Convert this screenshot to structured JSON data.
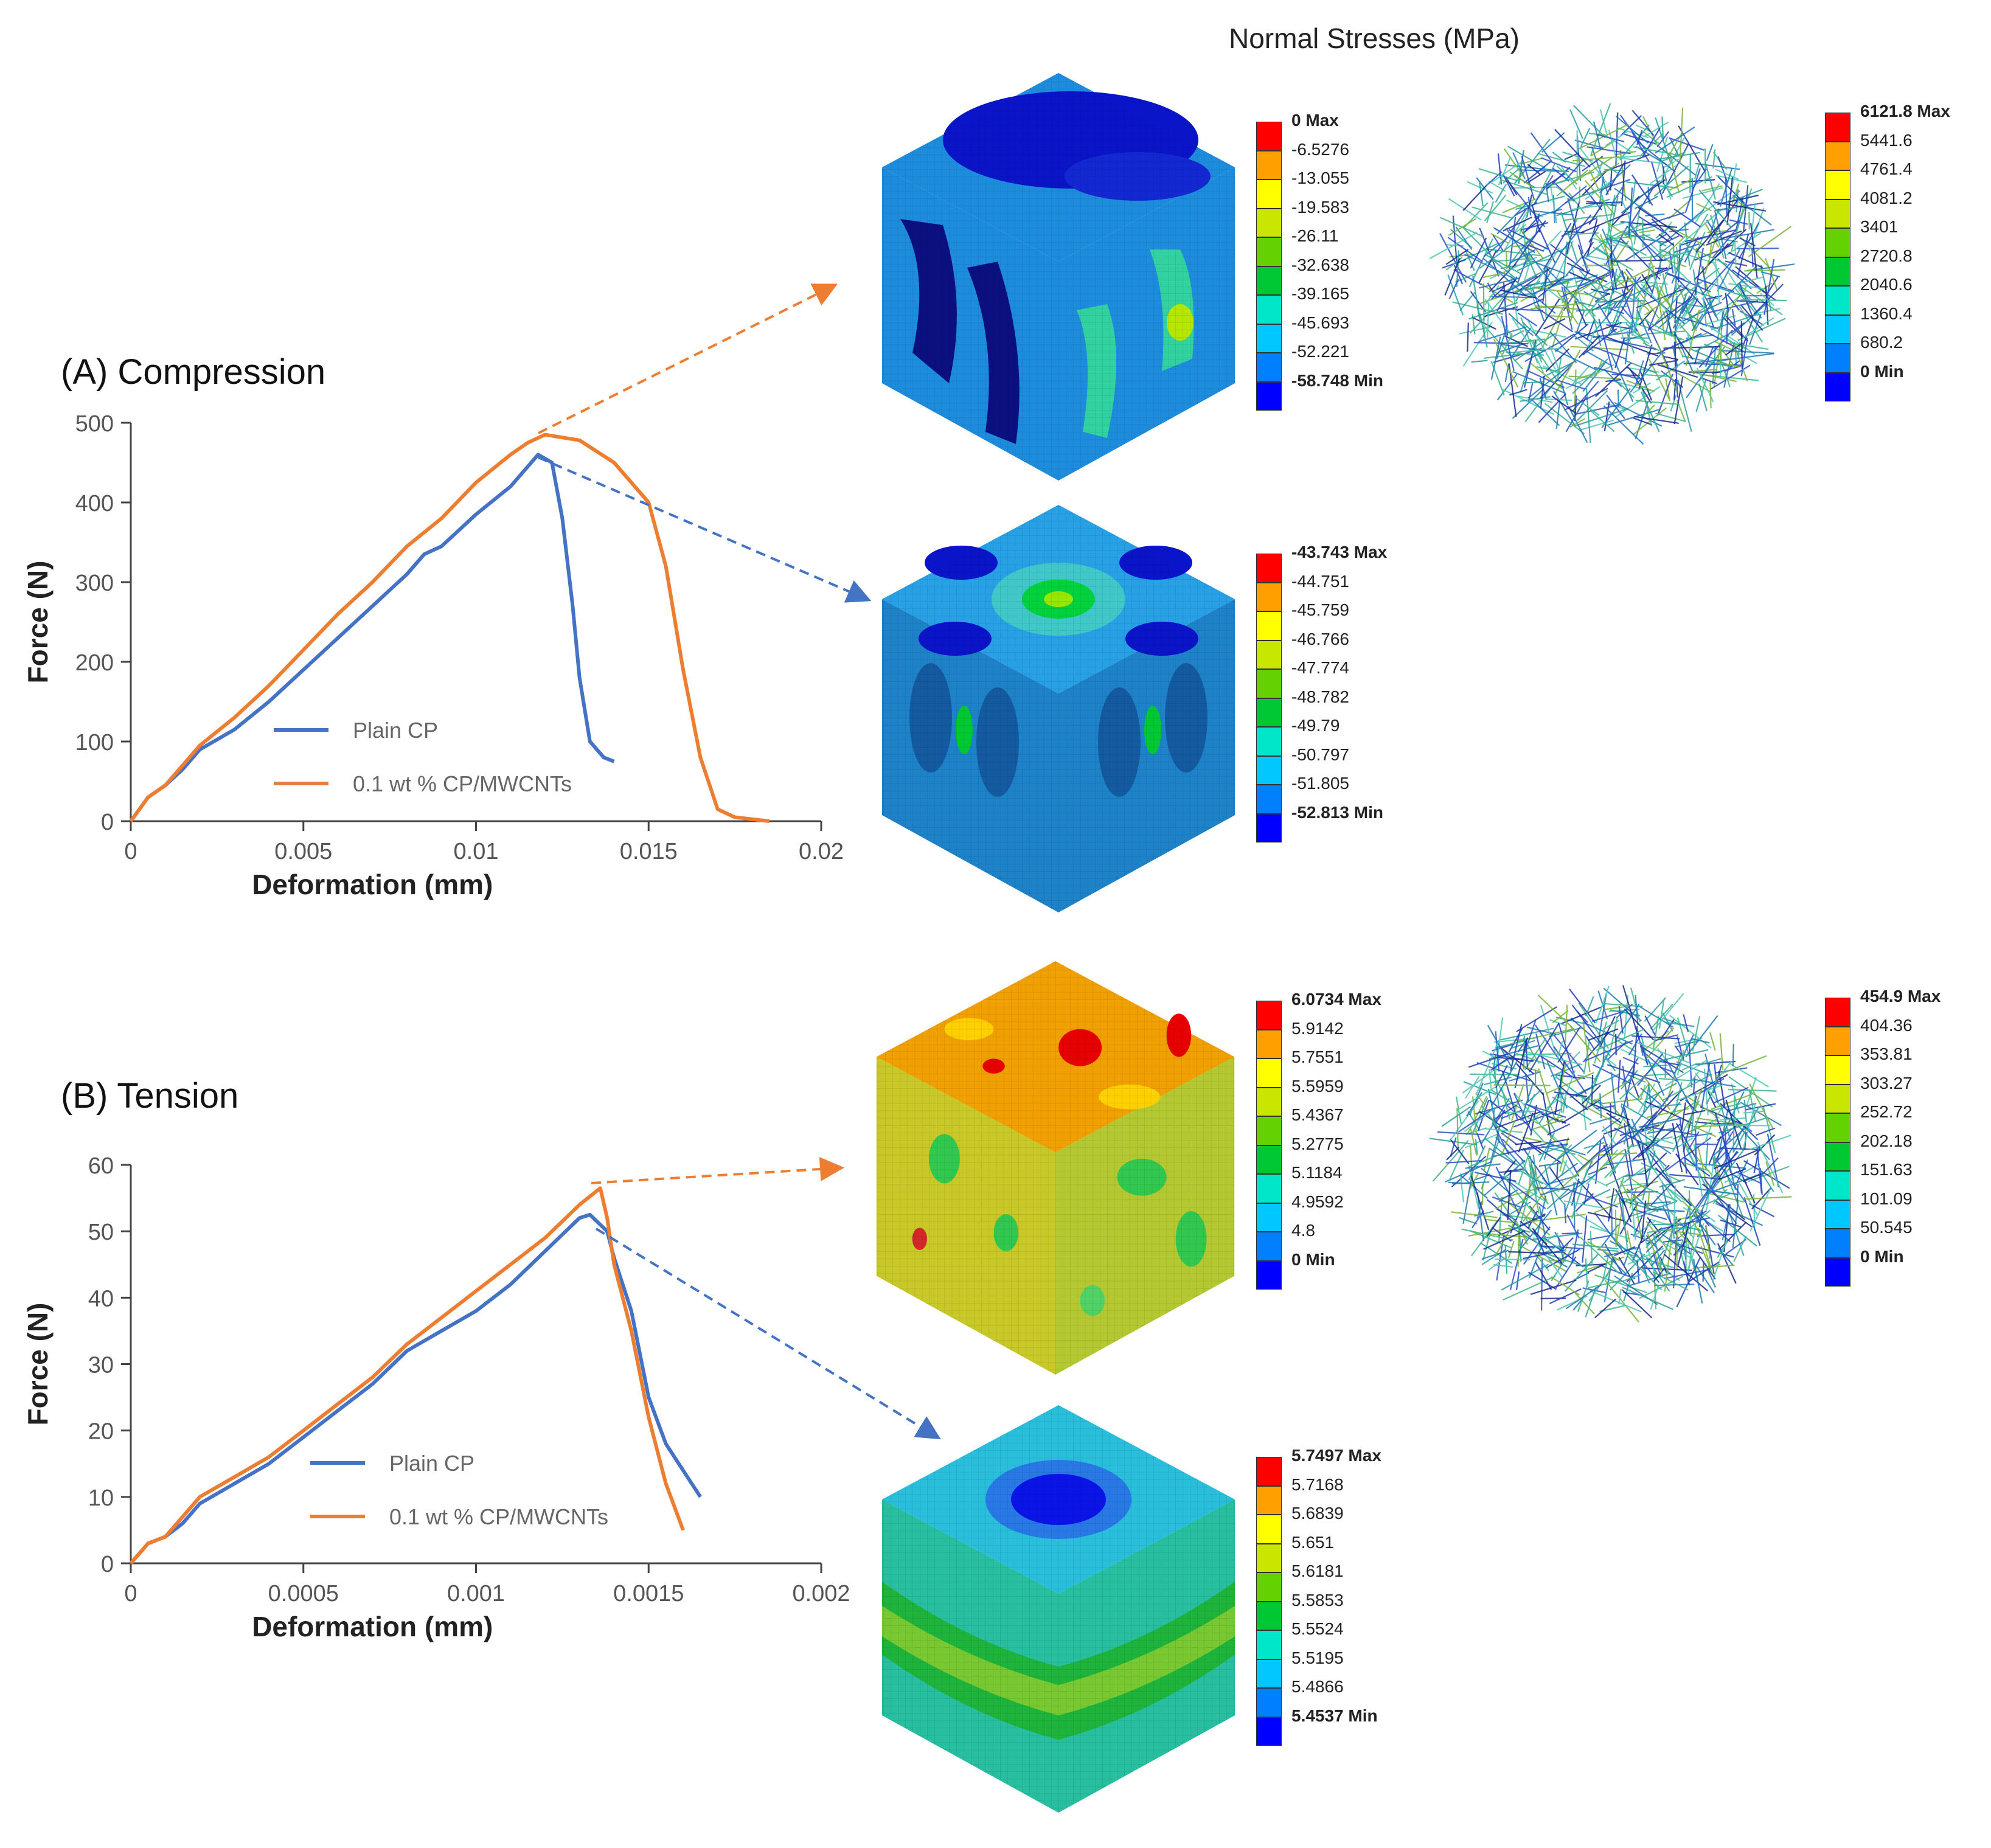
{
  "figure_title": "Normal Stresses (MPa)",
  "panels": {
    "compression_title": "(A) Compression",
    "tension_title": "(B) Tension"
  },
  "colors": {
    "plain": "#4472C4",
    "mwcnt": "#ED7D31",
    "contour": [
      "#0000FF",
      "#0080FF",
      "#00C8FF",
      "#00E6C8",
      "#00C832",
      "#64D200",
      "#C8E600",
      "#FFFF00",
      "#FFA000",
      "#FF0000"
    ]
  },
  "contour_legends": {
    "comp_plain": {
      "labels": [
        "0 Max",
        "-6.5276",
        "-13.055",
        "-19.583",
        "-26.11",
        "-32.638",
        "-39.165",
        "-45.693",
        "-52.221",
        "-58.748 Min"
      ]
    },
    "comp_fibers": {
      "labels": [
        "6121.8 Max",
        "5441.6",
        "4761.4",
        "4081.2",
        "3401",
        "2720.8",
        "2040.6",
        "1360.4",
        "680.2",
        "0 Min"
      ]
    },
    "comp_mwcnt": {
      "labels": [
        "-43.743 Max",
        "-44.751",
        "-45.759",
        "-46.766",
        "-47.774",
        "-48.782",
        "-49.79",
        "-50.797",
        "-51.805",
        "-52.813 Min"
      ]
    },
    "tens_plain": {
      "labels": [
        "6.0734 Max",
        "5.9142",
        "5.7551",
        "5.5959",
        "5.4367",
        "5.2775",
        "5.1184",
        "4.9592",
        "4.8",
        "0 Min"
      ]
    },
    "tens_fibers": {
      "labels": [
        "454.9 Max",
        "404.36",
        "353.81",
        "303.27",
        "252.72",
        "202.18",
        "151.63",
        "101.09",
        "50.545",
        "0 Min"
      ]
    },
    "tens_mwcnt": {
      "labels": [
        "5.7497 Max",
        "5.7168",
        "5.6839",
        "5.651",
        "5.6181",
        "5.5853",
        "5.5524",
        "5.5195",
        "5.4866",
        "5.4537 Min"
      ]
    }
  },
  "chart_data": [
    {
      "type": "line",
      "title": "(A) Compression",
      "xlabel": "Deformation (mm)",
      "ylabel": "Force (N)",
      "xlim": [
        0,
        0.02
      ],
      "ylim": [
        0,
        500
      ],
      "xticks": [
        "0",
        "0.005",
        "0.01",
        "0.015",
        "0.02"
      ],
      "yticks": [
        "0",
        "100",
        "200",
        "300",
        "400",
        "500"
      ],
      "legend_position": "lower-left",
      "series": [
        {
          "name": "Plain CP",
          "x": [
            0,
            0.0005,
            0.001,
            0.0015,
            0.002,
            0.003,
            0.004,
            0.005,
            0.006,
            0.007,
            0.008,
            0.0085,
            0.009,
            0.01,
            0.011,
            0.0118,
            0.0122,
            0.0125,
            0.0128,
            0.013,
            0.0133,
            0.0137,
            0.014
          ],
          "y": [
            0,
            30,
            45,
            65,
            90,
            115,
            150,
            190,
            230,
            270,
            310,
            335,
            345,
            385,
            420,
            460,
            450,
            380,
            270,
            180,
            100,
            80,
            75
          ]
        },
        {
          "name": "0.1 wt % CP/MWCNTs",
          "x": [
            0,
            0.0005,
            0.001,
            0.0015,
            0.002,
            0.003,
            0.004,
            0.005,
            0.006,
            0.007,
            0.008,
            0.009,
            0.01,
            0.011,
            0.0115,
            0.012,
            0.013,
            0.014,
            0.015,
            0.0155,
            0.016,
            0.0165,
            0.017,
            0.0175,
            0.0185
          ],
          "y": [
            0,
            30,
            45,
            70,
            95,
            130,
            170,
            215,
            260,
            300,
            345,
            380,
            425,
            460,
            475,
            485,
            478,
            450,
            400,
            320,
            190,
            80,
            15,
            5,
            0
          ]
        }
      ]
    },
    {
      "type": "line",
      "title": "(B) Tension",
      "xlabel": "Deformation (mm)",
      "ylabel": "Force (N)",
      "xlim": [
        0,
        0.002
      ],
      "ylim": [
        0,
        60
      ],
      "xticks": [
        "0",
        "0.0005",
        "0.001",
        "0.0015",
        "0.002"
      ],
      "yticks": [
        "0",
        "10",
        "20",
        "30",
        "40",
        "50",
        "60"
      ],
      "legend_position": "lower-left",
      "series": [
        {
          "name": "Plain CP",
          "x": [
            0,
            5e-05,
            0.0001,
            0.00015,
            0.0002,
            0.0003,
            0.0004,
            0.0005,
            0.0006,
            0.0007,
            0.0008,
            0.0009,
            0.001,
            0.0011,
            0.0012,
            0.0013,
            0.00133,
            0.00138,
            0.0014,
            0.00145,
            0.0015,
            0.00155,
            0.0016,
            0.00165
          ],
          "y": [
            0,
            3,
            4,
            6,
            9,
            12,
            15,
            19,
            23,
            27,
            32,
            35,
            38,
            42,
            47,
            52,
            52.5,
            50,
            46,
            38,
            25,
            18,
            14,
            10
          ]
        },
        {
          "name": "0.1 wt % CP/MWCNTs",
          "x": [
            0,
            5e-05,
            0.0001,
            0.00015,
            0.0002,
            0.0003,
            0.0004,
            0.0005,
            0.0006,
            0.0007,
            0.0008,
            0.0009,
            0.001,
            0.0011,
            0.0012,
            0.0013,
            0.00136,
            0.00138,
            0.0014,
            0.00145,
            0.0015,
            0.00155,
            0.0016
          ],
          "y": [
            0,
            3,
            4,
            7,
            10,
            13,
            16,
            20,
            24,
            28,
            33,
            37,
            41,
            45,
            49,
            54,
            56.5,
            52,
            45,
            35,
            22,
            12,
            5
          ]
        }
      ]
    }
  ]
}
